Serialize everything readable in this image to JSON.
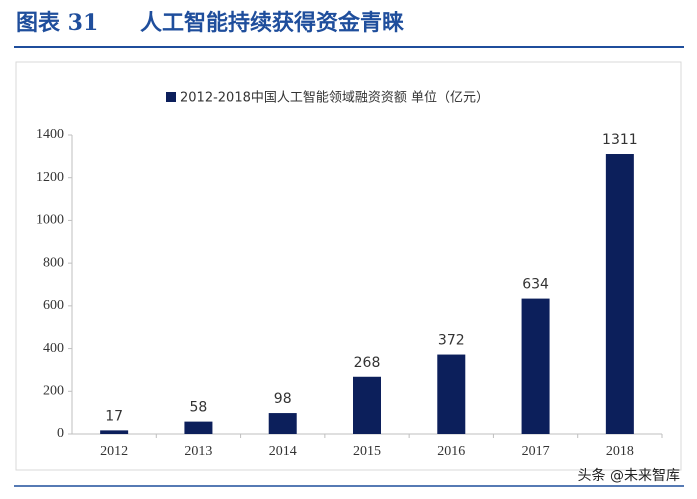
{
  "figure_label": "图表 31",
  "watermark": "头条 @未来智库",
  "chart_data": {
    "type": "bar",
    "title": "人工智能持续获得资金青睐",
    "categories": [
      "2012",
      "2013",
      "2014",
      "2015",
      "2016",
      "2017",
      "2018"
    ],
    "series": [
      {
        "name": "2012-2018中国人工智能领域融资资额 单位（亿元）",
        "color": "#0c1f5b",
        "values": [
          17,
          58,
          98,
          268,
          372,
          634,
          1311
        ]
      }
    ],
    "ylim": [
      0,
      1400
    ],
    "yticks": [
      0,
      200,
      400,
      600,
      800,
      1000,
      1200,
      1400
    ],
    "grid": false,
    "legend": "top",
    "data_labels": true
  }
}
